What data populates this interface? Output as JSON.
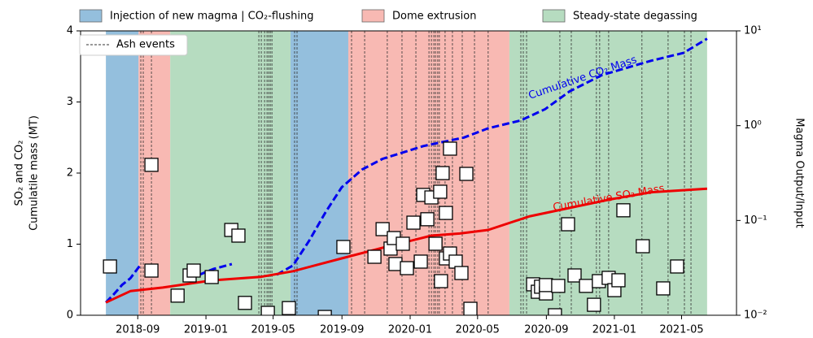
{
  "chart_data": {
    "type": "timeline",
    "y_label": [
      "SO₂ and CO₂",
      "Cumulatile mass (MT)"
    ],
    "y2_label": "Magma Output/Input",
    "xlim": [
      2018.386,
      2021.598
    ],
    "xticks": [
      {
        "value": 2018.666,
        "label": "2018-09"
      },
      {
        "value": 2019.0,
        "label": "2019-01"
      },
      {
        "value": 2019.329,
        "label": "2019-05"
      },
      {
        "value": 2019.666,
        "label": "2019-09"
      },
      {
        "value": 2020.0,
        "label": "2020-01"
      },
      {
        "value": 2020.33,
        "label": "2020-05"
      },
      {
        "value": 2020.667,
        "label": "2020-09"
      },
      {
        "value": 2021.0,
        "label": "2021-01"
      },
      {
        "value": 2021.329,
        "label": "2021-05"
      }
    ],
    "ylim": [
      0,
      4
    ],
    "yticks": [
      0,
      1,
      2,
      3,
      4
    ],
    "y2lim": [
      0.01,
      10
    ],
    "y2_log": true,
    "y2ticks": [
      {
        "value": 0.01,
        "label": "10⁻²"
      },
      {
        "value": 0.1,
        "label": "10⁻¹"
      },
      {
        "value": 1,
        "label": "10⁰"
      },
      {
        "value": 10,
        "label": "10¹"
      }
    ],
    "phases": [
      {
        "name": "Injection of new magma | CO₂-flushing",
        "color": "#94bfdd",
        "spans": [
          [
            2018.51,
            2018.67
          ],
          [
            2019.414,
            2019.697
          ]
        ]
      },
      {
        "name": "Dome extrusion",
        "color": "#f8b9b3",
        "spans": [
          [
            2018.67,
            2018.825
          ],
          [
            2019.697,
            2020.486
          ]
        ]
      },
      {
        "name": "Steady-state degassing",
        "color": "#b6dcc0",
        "spans": [
          [
            2018.825,
            2019.414
          ],
          [
            2020.486,
            2021.454
          ]
        ]
      }
    ],
    "ash_events": {
      "name": "Ash events",
      "x": [
        2018.681,
        2018.693,
        2018.733,
        2019.259,
        2019.271,
        2019.287,
        2019.299,
        2019.307,
        2019.315,
        2019.323,
        2019.434,
        2019.446,
        2019.713,
        2019.777,
        2019.888,
        2019.96,
        2020.028,
        2020.092,
        2020.104,
        2020.116,
        2020.124,
        2020.135,
        2020.143,
        2020.171,
        2020.207,
        2020.255,
        2020.315,
        2020.382,
        2020.542,
        2020.554,
        2020.57,
        2020.733,
        2020.789,
        2020.912,
        2020.928,
        2020.972,
        2021.135,
        2021.263,
        2021.343,
        2021.375
      ]
    },
    "series": [
      {
        "name": "Cumulative CO₂ Mass",
        "color": "#0000ee",
        "style": "dashed",
        "x": [
          2018.51,
          2018.55,
          2018.59,
          2018.63,
          2018.677,
          null,
          2018.968,
          2019.036,
          2019.127,
          null,
          2019.347,
          2019.426,
          2019.506,
          2019.586,
          2019.665,
          2019.765,
          2019.865,
          2020.064,
          2020.263,
          2020.382,
          2020.542,
          2020.661,
          2020.781,
          2020.94,
          2021.179,
          2021.339,
          2021.454
        ],
        "values": [
          0.18,
          0.3,
          0.43,
          0.52,
          0.7,
          null,
          0.57,
          0.65,
          0.72,
          null,
          0.57,
          0.7,
          1.05,
          1.45,
          1.8,
          2.05,
          2.2,
          2.38,
          2.5,
          2.63,
          2.74,
          2.9,
          3.15,
          3.38,
          3.58,
          3.69,
          3.89
        ]
      },
      {
        "name": "Cumulative SO₂ Mass",
        "color": "#ee0000",
        "style": "solid",
        "x": [
          2018.51,
          2018.63,
          2018.789,
          2019.028,
          2019.267,
          2019.426,
          2019.665,
          2019.865,
          2020.104,
          2020.243,
          2020.382,
          2020.582,
          2020.781,
          2020.98,
          2021.179,
          2021.454
        ],
        "values": [
          0.18,
          0.34,
          0.39,
          0.49,
          0.54,
          0.62,
          0.8,
          0.95,
          1.12,
          1.15,
          1.2,
          1.39,
          1.51,
          1.63,
          1.73,
          1.78
        ]
      },
      {
        "axis": "y2",
        "marker": "square",
        "color": "#ffffff",
        "x": [
          2018.53,
          2018.733,
          2018.733,
          2018.861,
          2018.92,
          2018.94,
          2019.028,
          2019.124,
          2019.159,
          2019.191,
          2019.303,
          2019.406,
          2019.582,
          2019.673,
          2019.825,
          2019.865,
          2019.904,
          2019.92,
          2019.928,
          2019.964,
          2019.984,
          2020.016,
          2020.052,
          2020.064,
          2020.084,
          2020.104,
          2020.124,
          2020.147,
          2020.151,
          2020.159,
          2020.175,
          2020.175,
          2020.195,
          2020.195,
          2020.223,
          2020.251,
          2020.275,
          2020.295,
          2020.602,
          2020.625,
          2020.641,
          2020.665,
          2020.665,
          2020.709,
          2020.725,
          2020.773,
          2020.805,
          2020.861,
          2020.9,
          2020.924,
          2020.972,
          2021.0,
          2021.02,
          2021.044,
          2021.139,
          2021.239,
          2021.307
        ],
        "values": [
          0.0327,
          0.386,
          0.0296,
          0.0161,
          0.0263,
          0.0296,
          0.0253,
          0.0794,
          0.0692,
          0.0135,
          0.0106,
          0.0119,
          0.0096,
          0.0525,
          0.0414,
          0.081,
          0.0505,
          0.0652,
          0.0347,
          0.0568,
          0.0314,
          0.0948,
          0.0368,
          0.186,
          0.103,
          0.175,
          0.0568,
          0.201,
          0.0229,
          0.316,
          0.0398,
          0.12,
          0.572,
          0.0448,
          0.0368,
          0.0279,
          0.31,
          0.0117,
          0.0212,
          0.0177,
          0.02,
          0.017,
          0.0208,
          0.01,
          0.0204,
          0.0912,
          0.0263,
          0.0204,
          0.0129,
          0.0229,
          0.0248,
          0.0184,
          0.0234,
          0.128,
          0.0535,
          0.0192,
          0.0327
        ]
      }
    ]
  }
}
